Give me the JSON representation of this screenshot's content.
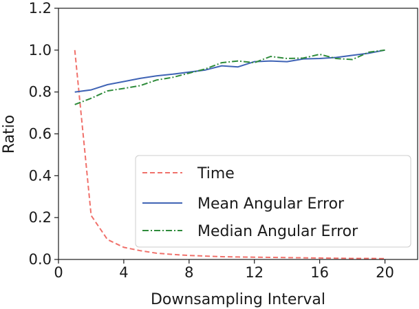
{
  "chart_data": {
    "type": "line",
    "xlabel": "Downsampling Interval",
    "ylabel": "Ratio",
    "xlim": [
      0,
      22
    ],
    "ylim": [
      0,
      1.2
    ],
    "xticks": [
      0,
      4,
      8,
      12,
      16,
      20
    ],
    "yticks": [
      0.0,
      0.2,
      0.4,
      0.6,
      0.8,
      1.0,
      1.2
    ],
    "xtick_labels": [
      "0",
      "4",
      "8",
      "12",
      "16",
      "20"
    ],
    "ytick_labels": [
      "0.0",
      "0.2",
      "0.4",
      "0.6",
      "0.8",
      "1.0",
      "1.2"
    ],
    "grid": false,
    "legend_position": "lower-right",
    "x": [
      1,
      2,
      3,
      4,
      5,
      6,
      7,
      8,
      9,
      10,
      11,
      12,
      13,
      14,
      15,
      16,
      17,
      18,
      19,
      20
    ],
    "series": [
      {
        "name": "Time",
        "color": "#f0706a",
        "dash": "dashed",
        "values": [
          1.0,
          0.21,
          0.095,
          0.058,
          0.042,
          0.03,
          0.024,
          0.019,
          0.016,
          0.013,
          0.012,
          0.011,
          0.01,
          0.009,
          0.008,
          0.007,
          0.006,
          0.005,
          0.005,
          0.004
        ]
      },
      {
        "name": "Mean Angular Error",
        "color": "#3f63b5",
        "dash": "solid",
        "values": [
          0.8,
          0.81,
          0.835,
          0.85,
          0.865,
          0.877,
          0.885,
          0.895,
          0.905,
          0.925,
          0.92,
          0.945,
          0.948,
          0.945,
          0.958,
          0.96,
          0.965,
          0.975,
          0.985,
          1.0
        ]
      },
      {
        "name": "Median Angular Error",
        "color": "#2e8b3a",
        "dash": "dashdot",
        "values": [
          0.74,
          0.77,
          0.805,
          0.817,
          0.83,
          0.857,
          0.87,
          0.89,
          0.91,
          0.94,
          0.948,
          0.94,
          0.97,
          0.96,
          0.962,
          0.98,
          0.96,
          0.955,
          0.99,
          1.0
        ]
      }
    ]
  }
}
